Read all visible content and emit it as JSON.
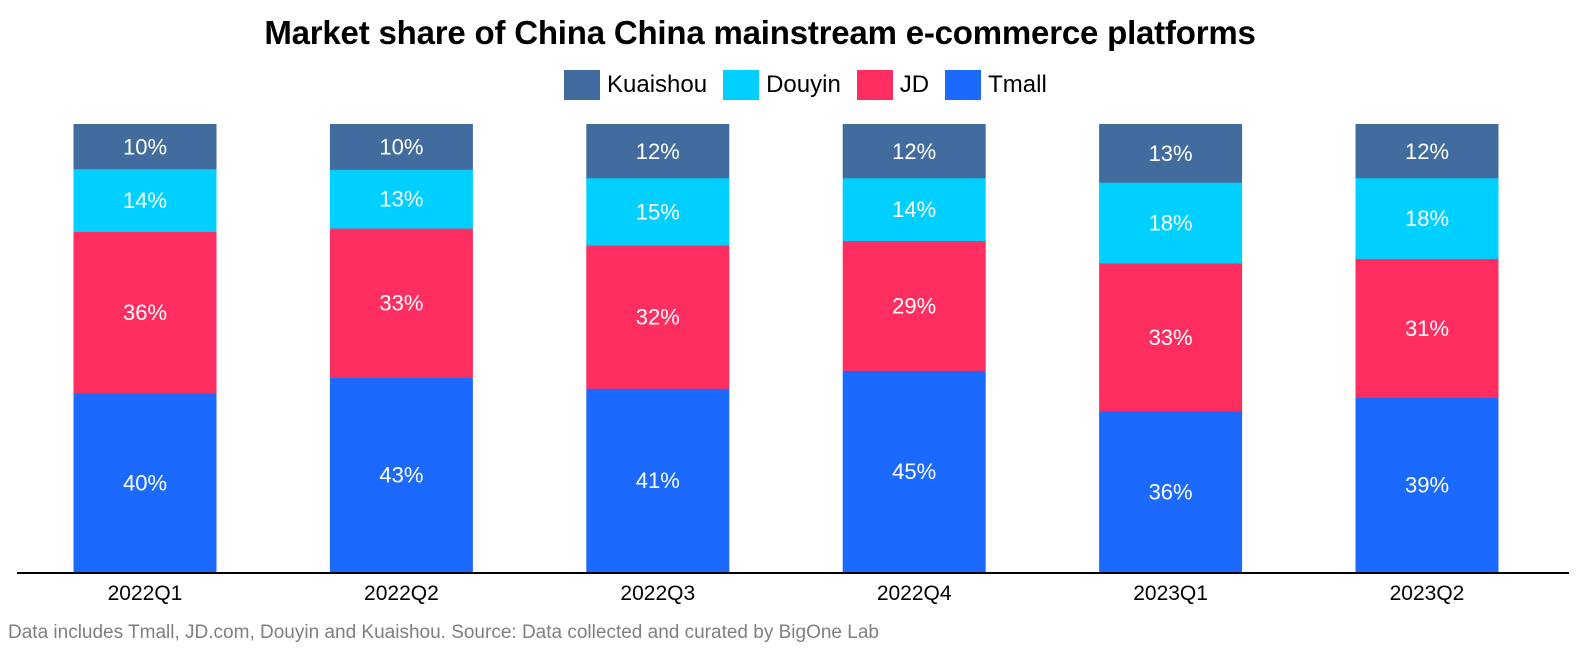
{
  "chart_data": {
    "type": "bar",
    "stacked": true,
    "title": "Market share of China China mainstream e-commerce platforms",
    "xlabel": "",
    "ylabel": "",
    "ylim": [
      0,
      100
    ],
    "grid": false,
    "legend_position": "top-center",
    "categories": [
      "2022Q1",
      "2022Q2",
      "2022Q3",
      "2022Q4",
      "2023Q1",
      "2023Q2"
    ],
    "series": [
      {
        "name": "Tmall",
        "color": "#1B69FF",
        "values": [
          40,
          43,
          41,
          45,
          36,
          39
        ]
      },
      {
        "name": "JD",
        "color": "#FF2E61",
        "values": [
          36,
          33,
          32,
          29,
          33,
          31
        ]
      },
      {
        "name": "Douyin",
        "color": "#00D0FF",
        "values": [
          14,
          13,
          15,
          14,
          18,
          18
        ]
      },
      {
        "name": "Kuaishou",
        "color": "#436C9E",
        "values": [
          10,
          10,
          12,
          12,
          13,
          12
        ]
      }
    ],
    "legend_order": [
      "Kuaishou",
      "Douyin",
      "JD",
      "Tmall"
    ],
    "value_suffix": "%",
    "footnote": "Data includes Tmall, JD.com, Douyin and Kuaishou. Source: Data collected and curated by BigOne Lab"
  }
}
